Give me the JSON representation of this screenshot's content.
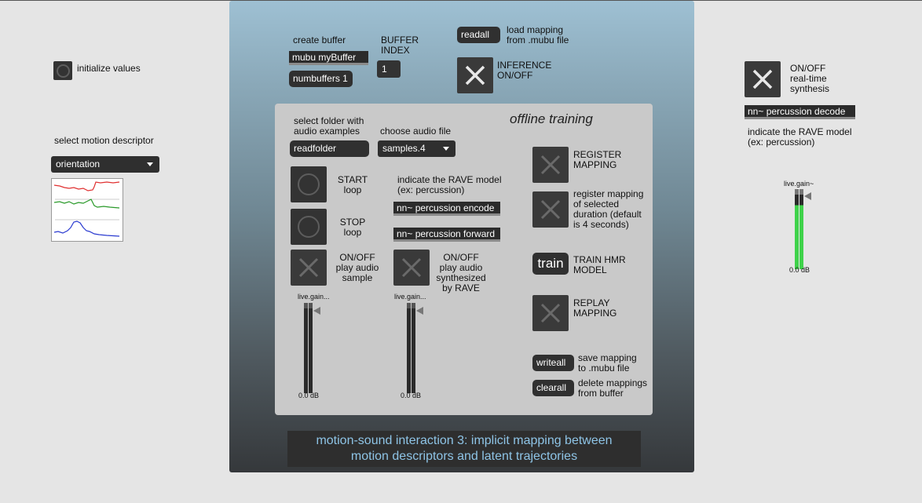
{
  "left": {
    "init_label": "initialize values",
    "motion_descriptor_label": "select motion descriptor",
    "motion_descriptor_selected": "orientation"
  },
  "top": {
    "create_buffer_label": "create buffer",
    "buffer_object": "mubu myBuffer",
    "numbuffers_button": "numbuffers 1",
    "buffer_index_label": "BUFFER\nINDEX",
    "buffer_index_value": "1",
    "readall_button": "readall",
    "load_mapping_label": "load mapping\nfrom .mubu file",
    "inference_label": "INFERENCE\nON/OFF"
  },
  "offline": {
    "title": "offline training",
    "select_folder_label": "select folder with\naudio examples",
    "readfolder_button": "readfolder",
    "choose_audio_label": "choose audio file",
    "audio_file_selected": "samples.4",
    "start_label": "START\nloop",
    "stop_label": "STOP\nloop",
    "play_sample_label": "ON/OFF\nplay audio\nsample",
    "rave_model_label": "indicate the RAVE model\n(ex: percussion)",
    "encode_object": "nn~ percussion encode",
    "forward_object": "nn~ percussion forward",
    "play_rave_label": "ON/OFF\nplay audio\nsynthesized\nby RAVE",
    "gain1_title": "live.gain...",
    "gain1_db": "0.0 dB",
    "gain2_title": "live.gain...",
    "gain2_db": "0.0 dB",
    "register_label": "REGISTER\nMAPPING",
    "register_duration_label": "register mapping\nof selected\nduration (default\nis 4 seconds)",
    "train_button": "train",
    "train_label": "TRAIN HMR\nMODEL",
    "replay_label": "REPLAY\nMAPPING",
    "writeall_button": "writeall",
    "save_label": "save mapping\nto .mubu file",
    "clearall_button": "clearall",
    "delete_label": "delete mappings\nfrom buffer"
  },
  "right": {
    "synthesis_label": "ON/OFF\nreal-time\nsynthesis",
    "decode_object": "nn~ percussion decode",
    "rave_model_label": "indicate the RAVE model\n(ex: percussion)",
    "gain_title": "live.gain~",
    "gain_db": "0.0 dB"
  },
  "footer": {
    "title_line1": "motion-sound interaction 3: implicit mapping between",
    "title_line2": "motion descriptors and latent trajectories"
  },
  "colors": {
    "title_text": "#8ec4e6",
    "meter_green": "#3fd24a",
    "plot_red": "#e03030",
    "plot_green": "#2a9a2a",
    "plot_blue": "#2a3ad0"
  },
  "icons": {
    "toggle": "x-toggle-icon",
    "circle_button": "circle-bang-icon",
    "dropdown": "chevron-down-icon"
  }
}
